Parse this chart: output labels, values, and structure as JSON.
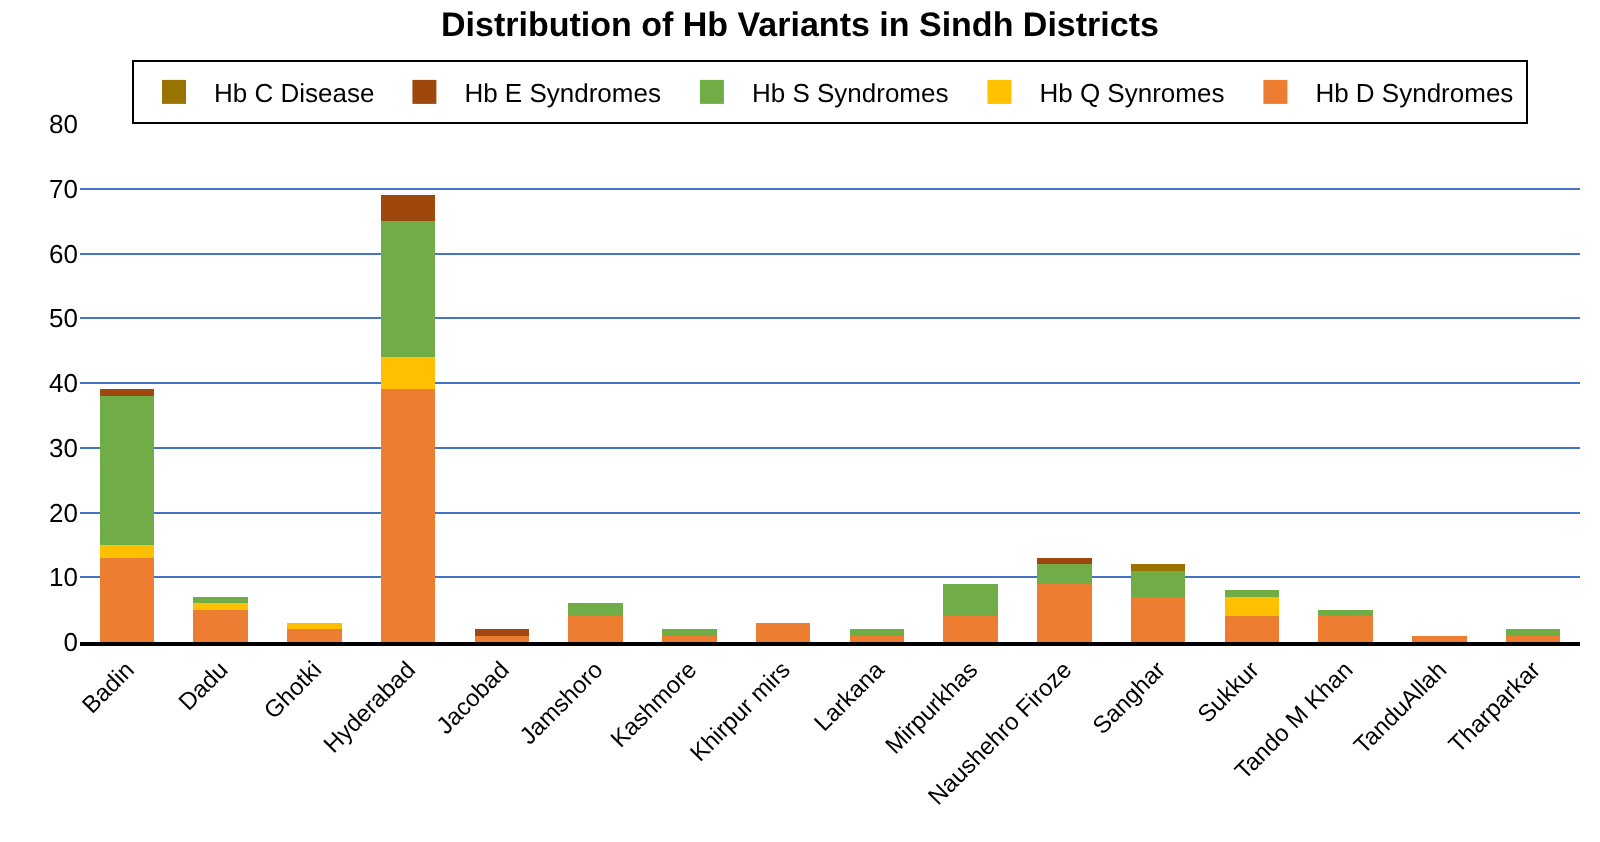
{
  "chart_data": {
    "type": "bar",
    "title": "Distribution of Hb Variants in Sindh Districts",
    "stacked": true,
    "categories": [
      "Badin",
      "Dadu",
      "Ghotki",
      "Hyderabad",
      "Jacobad",
      "Jamshoro",
      "Kashmore",
      "Khirpur mirs",
      "Larkana",
      "Mirpurkhas",
      "Naushehro Firoze",
      "Sanghar",
      "Sukkur",
      "Tando M Khan",
      "TanduAllah",
      "Tharparkar"
    ],
    "series": [
      {
        "name": "Hb D Syndromes",
        "color": "#ed7d31",
        "values": [
          13,
          5,
          2,
          39,
          1,
          4,
          1,
          3,
          1,
          4,
          9,
          7,
          4,
          4,
          1,
          1
        ]
      },
      {
        "name": "Hb Q Synromes",
        "color": "#ffc000",
        "values": [
          2,
          1,
          1,
          5,
          0,
          0,
          0,
          0,
          0,
          0,
          0,
          0,
          3,
          0,
          0,
          0
        ]
      },
      {
        "name": "Hb S Syndromes",
        "color": "#70ad47",
        "values": [
          23,
          1,
          0,
          21,
          0,
          2,
          1,
          0,
          1,
          5,
          3,
          4,
          1,
          1,
          0,
          1
        ]
      },
      {
        "name": "Hb E Syndromes",
        "color": "#9e480e",
        "values": [
          1,
          0,
          0,
          4,
          1,
          0,
          0,
          0,
          0,
          0,
          1,
          0,
          0,
          0,
          0,
          0
        ]
      },
      {
        "name": "Hb C Disease",
        "color": "#997300",
        "values": [
          0,
          0,
          0,
          0,
          0,
          0,
          0,
          0,
          0,
          0,
          0,
          1,
          0,
          0,
          0,
          0
        ]
      }
    ],
    "ylim": [
      0,
      80
    ],
    "yticks": [
      0,
      10,
      20,
      30,
      40,
      50,
      60,
      70,
      80
    ],
    "grid": "y",
    "legend": "top"
  }
}
